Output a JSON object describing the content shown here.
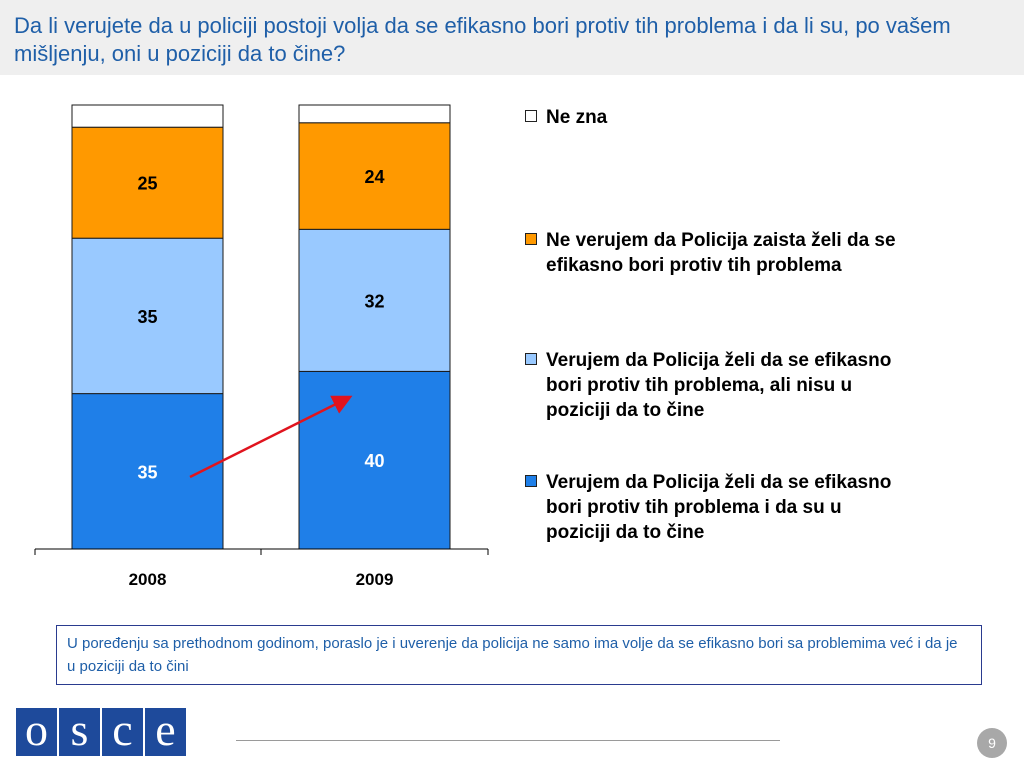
{
  "slide": {
    "title": "Da li verujete da u policiji postoji volja da se efikasno bori  protiv tih problema i da li su, po vašem mišljenju, oni u poziciji da to čine?",
    "note": "U poređenju sa prethodnom godinom, poraslo je i uverenje da policija ne samo ima volje da se efikasno bori sa problemima već i da je u poziciji da to čini",
    "logo_text": "OSCE",
    "page_number": "9"
  },
  "legend": [
    {
      "label": "Ne zna",
      "color": "#ffffff"
    },
    {
      "label": "Ne verujem da Policija zaista želi da se efikasno bori protiv tih problema",
      "color": "#ff9900"
    },
    {
      "label": "Verujem da Policija želi da se efikasno bori protiv tih problema, ali nisu u poziciji da to čine",
      "color": "#99c9ff"
    },
    {
      "label": "Verujem da Policija želi da se efikasno bori protiv tih problema i da su u poziciji da to čine",
      "color": "#1f7fe8"
    }
  ],
  "chart_data": {
    "type": "bar",
    "stacked": true,
    "categories": [
      "2008",
      "2009"
    ],
    "series": [
      {
        "name": "Verujem da Policija želi da se efikasno bori protiv tih problema i da su u poziciji da to čine",
        "values": [
          35,
          40
        ],
        "color": "#1f7fe8",
        "label_color": "#ffffff"
      },
      {
        "name": "Verujem da Policija želi da se efikasno bori protiv tih problema, ali nisu u poziciji da to čine",
        "values": [
          35,
          32
        ],
        "color": "#99c9ff",
        "label_color": "#000000"
      },
      {
        "name": "Ne verujem da Policija zaista želi da se efikasno bori protiv tih problema",
        "values": [
          25,
          24
        ],
        "color": "#ff9900",
        "label_color": "#000000"
      },
      {
        "name": "Ne zna",
        "values": [
          5,
          4
        ],
        "color": "#ffffff",
        "label_color": "#000000",
        "show_label": false
      }
    ],
    "ylim": [
      0,
      100
    ],
    "annotation": "red arrow rising from 2008 to 2009 on bottom segment",
    "arrow_color": "#e0141e"
  }
}
